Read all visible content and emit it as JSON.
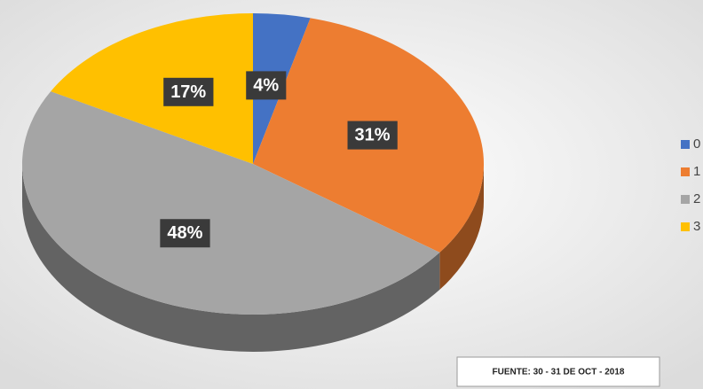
{
  "chart_data": {
    "type": "pie",
    "categories": [
      "0",
      "1",
      "2",
      "3"
    ],
    "values": [
      4,
      31,
      48,
      17
    ],
    "value_labels": [
      "4%",
      "31%",
      "48%",
      "17%"
    ],
    "colors": [
      "#4472c4",
      "#ed7d31",
      "#a5a5a5",
      "#ffc000"
    ],
    "annotation": "FUENTE: 30 - 31 DE OCT - 2018",
    "legend": "right"
  }
}
